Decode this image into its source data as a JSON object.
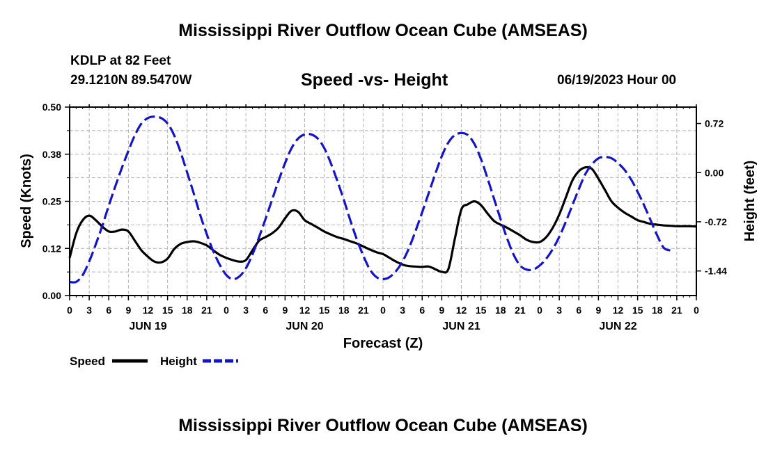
{
  "header": {
    "title": "Mississippi River Outflow Ocean Cube (AMSEAS)",
    "station": "KDLP at 82 Feet",
    "coords": "29.1210N  89.5470W",
    "subtitle": "Speed -vs- Height",
    "datetime": "06/19/2023 Hour 00"
  },
  "footer": {
    "title": "Mississippi River Outflow Ocean Cube (AMSEAS)"
  },
  "colors": {
    "speed": "#000000",
    "height": "#1414c8",
    "grid": "#b4b4b4"
  },
  "chart_data": {
    "type": "line",
    "title": "Speed -vs- Height",
    "xlabel": "Forecast (Z)",
    "ylabel": "Speed (Knots)",
    "y2label": "Height (feet)",
    "x_range_hours": [
      0,
      96
    ],
    "ylim": [
      0,
      0.5
    ],
    "y2lim": [
      -1.8,
      0.96
    ],
    "yticks": [
      "0.00",
      "0.12",
      "0.25",
      "0.38",
      "0.50"
    ],
    "yticks_values": [
      0,
      0.125,
      0.25,
      0.375,
      0.5
    ],
    "y2ticks": [
      "-1.44",
      "-0.72",
      "0.00",
      "0.72"
    ],
    "y2ticks_values": [
      -1.44,
      -0.72,
      0.0,
      0.72
    ],
    "xtick_labels": [
      "0",
      "3",
      "6",
      "9",
      "12",
      "15",
      "18",
      "21",
      "0",
      "3",
      "6",
      "9",
      "12",
      "15",
      "18",
      "21",
      "0",
      "3",
      "6",
      "9",
      "12",
      "15",
      "18",
      "21",
      "0",
      "3",
      "6",
      "9",
      "12",
      "15",
      "18",
      "21",
      "0"
    ],
    "day_labels": [
      {
        "label": "JUN 19",
        "hour": 12
      },
      {
        "label": "JUN 20",
        "hour": 36
      },
      {
        "label": "JUN 21",
        "hour": 60
      },
      {
        "label": "JUN 22",
        "hour": 84
      }
    ],
    "legend": [
      {
        "name": "Speed",
        "style": "solid"
      },
      {
        "name": "Height",
        "style": "dashed"
      }
    ],
    "series": [
      {
        "name": "Speed",
        "axis": "left",
        "points": [
          [
            0,
            0.1
          ],
          [
            1,
            0.165
          ],
          [
            2,
            0.2
          ],
          [
            3,
            0.212
          ],
          [
            4,
            0.2
          ],
          [
            5,
            0.183
          ],
          [
            6,
            0.17
          ],
          [
            7,
            0.17
          ],
          [
            8,
            0.175
          ],
          [
            9,
            0.17
          ],
          [
            10,
            0.145
          ],
          [
            11,
            0.12
          ],
          [
            12,
            0.103
          ],
          [
            13,
            0.09
          ],
          [
            14,
            0.088
          ],
          [
            15,
            0.098
          ],
          [
            16,
            0.123
          ],
          [
            17,
            0.137
          ],
          [
            18,
            0.142
          ],
          [
            19,
            0.144
          ],
          [
            20,
            0.14
          ],
          [
            21,
            0.133
          ],
          [
            22,
            0.12
          ],
          [
            23,
            0.108
          ],
          [
            24,
            0.1
          ],
          [
            25,
            0.094
          ],
          [
            26,
            0.09
          ],
          [
            27,
            0.094
          ],
          [
            28,
            0.12
          ],
          [
            29,
            0.145
          ],
          [
            30,
            0.155
          ],
          [
            31,
            0.165
          ],
          [
            32,
            0.18
          ],
          [
            33,
            0.205
          ],
          [
            34,
            0.225
          ],
          [
            35,
            0.222
          ],
          [
            36,
            0.2
          ],
          [
            37,
            0.19
          ],
          [
            38,
            0.18
          ],
          [
            39,
            0.17
          ],
          [
            40,
            0.162
          ],
          [
            41,
            0.155
          ],
          [
            42,
            0.15
          ],
          [
            43,
            0.144
          ],
          [
            44,
            0.138
          ],
          [
            45,
            0.13
          ],
          [
            46,
            0.122
          ],
          [
            47,
            0.115
          ],
          [
            48,
            0.11
          ],
          [
            49,
            0.1
          ],
          [
            50,
            0.09
          ],
          [
            51,
            0.082
          ],
          [
            52,
            0.078
          ],
          [
            53,
            0.077
          ],
          [
            54,
            0.076
          ],
          [
            55,
            0.077
          ],
          [
            56,
            0.07
          ],
          [
            57,
            0.063
          ],
          [
            58,
            0.07
          ],
          [
            59,
            0.15
          ],
          [
            60,
            0.228
          ],
          [
            61,
            0.242
          ],
          [
            62,
            0.25
          ],
          [
            63,
            0.24
          ],
          [
            64,
            0.218
          ],
          [
            65,
            0.198
          ],
          [
            66,
            0.188
          ],
          [
            67,
            0.18
          ],
          [
            68,
            0.17
          ],
          [
            69,
            0.16
          ],
          [
            70,
            0.148
          ],
          [
            71,
            0.142
          ],
          [
            72,
            0.142
          ],
          [
            73,
            0.155
          ],
          [
            74,
            0.18
          ],
          [
            75,
            0.215
          ],
          [
            76,
            0.26
          ],
          [
            77,
            0.305
          ],
          [
            78,
            0.33
          ],
          [
            79,
            0.34
          ],
          [
            80,
            0.336
          ],
          [
            81,
            0.31
          ],
          [
            82,
            0.28
          ],
          [
            83,
            0.25
          ],
          [
            84,
            0.233
          ],
          [
            85,
            0.22
          ],
          [
            86,
            0.21
          ],
          [
            87,
            0.2
          ],
          [
            88,
            0.195
          ],
          [
            89,
            0.19
          ],
          [
            90,
            0.188
          ],
          [
            91,
            0.186
          ],
          [
            92,
            0.185
          ],
          [
            93,
            0.184
          ],
          [
            94,
            0.184
          ],
          [
            95,
            0.184
          ],
          [
            96,
            0.183
          ]
        ]
      },
      {
        "name": "Height",
        "axis": "right",
        "points": [
          [
            0,
            -1.6
          ],
          [
            1,
            -1.6
          ],
          [
            2,
            -1.5
          ],
          [
            3,
            -1.3
          ],
          [
            4,
            -1.05
          ],
          [
            5,
            -0.78
          ],
          [
            6,
            -0.48
          ],
          [
            7,
            -0.2
          ],
          [
            8,
            0.07
          ],
          [
            9,
            0.32
          ],
          [
            10,
            0.55
          ],
          [
            11,
            0.72
          ],
          [
            12,
            0.8
          ],
          [
            13,
            0.82
          ],
          [
            14,
            0.8
          ],
          [
            15,
            0.72
          ],
          [
            16,
            0.55
          ],
          [
            17,
            0.3
          ],
          [
            18,
            0.0
          ],
          [
            19,
            -0.3
          ],
          [
            20,
            -0.62
          ],
          [
            21,
            -0.9
          ],
          [
            22,
            -1.15
          ],
          [
            23,
            -1.35
          ],
          [
            24,
            -1.5
          ],
          [
            25,
            -1.56
          ],
          [
            26,
            -1.52
          ],
          [
            27,
            -1.4
          ],
          [
            28,
            -1.2
          ],
          [
            29,
            -0.95
          ],
          [
            30,
            -0.68
          ],
          [
            31,
            -0.4
          ],
          [
            32,
            -0.12
          ],
          [
            33,
            0.14
          ],
          [
            34,
            0.36
          ],
          [
            35,
            0.5
          ],
          [
            36,
            0.56
          ],
          [
            37,
            0.56
          ],
          [
            38,
            0.5
          ],
          [
            39,
            0.36
          ],
          [
            40,
            0.14
          ],
          [
            41,
            -0.12
          ],
          [
            42,
            -0.4
          ],
          [
            43,
            -0.7
          ],
          [
            44,
            -0.98
          ],
          [
            45,
            -1.22
          ],
          [
            46,
            -1.42
          ],
          [
            47,
            -1.53
          ],
          [
            48,
            -1.56
          ],
          [
            49,
            -1.53
          ],
          [
            50,
            -1.44
          ],
          [
            51,
            -1.3
          ],
          [
            52,
            -1.1
          ],
          [
            53,
            -0.85
          ],
          [
            54,
            -0.58
          ],
          [
            55,
            -0.3
          ],
          [
            56,
            -0.02
          ],
          [
            57,
            0.24
          ],
          [
            58,
            0.44
          ],
          [
            59,
            0.55
          ],
          [
            60,
            0.58
          ],
          [
            61,
            0.55
          ],
          [
            62,
            0.42
          ],
          [
            63,
            0.2
          ],
          [
            64,
            -0.08
          ],
          [
            65,
            -0.38
          ],
          [
            66,
            -0.68
          ],
          [
            67,
            -0.96
          ],
          [
            68,
            -1.2
          ],
          [
            69,
            -1.36
          ],
          [
            70,
            -1.42
          ],
          [
            71,
            -1.42
          ],
          [
            72,
            -1.36
          ],
          [
            73,
            -1.26
          ],
          [
            74,
            -1.12
          ],
          [
            75,
            -0.94
          ],
          [
            76,
            -0.72
          ],
          [
            77,
            -0.48
          ],
          [
            78,
            -0.24
          ],
          [
            79,
            -0.02
          ],
          [
            80,
            0.12
          ],
          [
            81,
            0.21
          ],
          [
            82,
            0.23
          ],
          [
            83,
            0.21
          ],
          [
            84,
            0.14
          ],
          [
            85,
            0.04
          ],
          [
            86,
            -0.1
          ],
          [
            87,
            -0.28
          ],
          [
            88,
            -0.48
          ],
          [
            89,
            -0.7
          ],
          [
            90,
            -0.92
          ],
          [
            91,
            -1.1
          ],
          [
            92,
            -1.14
          ]
        ]
      }
    ]
  }
}
